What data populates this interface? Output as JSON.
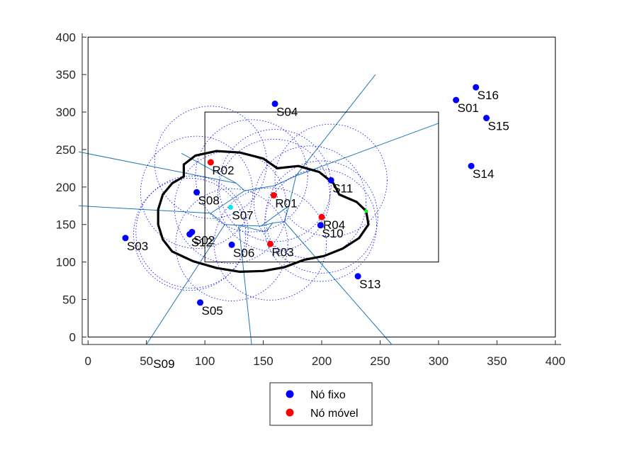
{
  "chart_data": {
    "type": "scatter",
    "title": "",
    "xlabel": "",
    "ylabel": "",
    "xlim": [
      -5,
      405
    ],
    "ylim": [
      -10,
      405
    ],
    "xticks": [
      "0",
      "50",
      "100",
      "150",
      "200",
      "250",
      "300",
      "350",
      "400"
    ],
    "yticks": [
      "0",
      "50",
      "100",
      "150",
      "200",
      "250",
      "300",
      "350",
      "400"
    ],
    "colors": {
      "fixed": "#0000ff",
      "mobile": "#ff0000",
      "voronoi": "#1f77b4",
      "coverage": "#0000ff",
      "cyan": "#00e5e5",
      "green": "#00ff00"
    },
    "series": [
      {
        "name": "Nó fixo",
        "points": [
          {
            "label": "S01",
            "x": 315,
            "y": 316
          },
          {
            "label": "S02",
            "x": 89,
            "y": 140
          },
          {
            "label": "S03",
            "x": 32,
            "y": 132
          },
          {
            "label": "S04",
            "x": 160,
            "y": 311
          },
          {
            "label": "S05",
            "x": 96,
            "y": 46
          },
          {
            "label": "S06",
            "x": 123,
            "y": 123
          },
          {
            "label": "S08",
            "x": 93,
            "y": 193
          },
          {
            "label": "S10",
            "x": 199,
            "y": 149
          },
          {
            "label": "S11",
            "x": 208,
            "y": 209
          },
          {
            "label": "S12",
            "x": 87,
            "y": 137
          },
          {
            "label": "S13",
            "x": 231,
            "y": 81
          },
          {
            "label": "S14",
            "x": 328,
            "y": 228
          },
          {
            "label": "S15",
            "x": 341,
            "y": 292
          },
          {
            "label": "S16",
            "x": 332,
            "y": 333
          }
        ]
      },
      {
        "name": "Nó móvel",
        "points": [
          {
            "label": "R01",
            "x": 159,
            "y": 189
          },
          {
            "label": "R02",
            "x": 105,
            "y": 233
          },
          {
            "label": "R03",
            "x": 156,
            "y": 124
          },
          {
            "label": "R04",
            "x": 200,
            "y": 160
          }
        ]
      }
    ],
    "extra_points": [
      {
        "label": "S07",
        "x": 122,
        "y": 173,
        "color": "cyan"
      },
      {
        "label": "",
        "x": 238,
        "y": 168,
        "color": "green"
      }
    ],
    "outside_labels": [
      {
        "label": "S09",
        "x": 65,
        "y": -41
      }
    ],
    "rectangles": [
      {
        "x0": 100,
        "y0": 100,
        "x1": 300,
        "y1": 300
      },
      {
        "x0": 0,
        "y0": 0,
        "x1": 400,
        "y1": 400
      }
    ],
    "voronoi_vertices": {
      "a": [
        127,
        205
      ],
      "b": [
        134,
        195
      ],
      "c": [
        160,
        202
      ],
      "d": [
        178,
        215
      ],
      "e": [
        172,
        175
      ],
      "f": [
        148,
        148
      ],
      "g": [
        129,
        149
      ],
      "h": [
        117,
        150
      ],
      "i": [
        105,
        165
      ],
      "j": [
        158,
        152
      ],
      "k": [
        168,
        154
      ],
      "l": [
        152,
        140
      ]
    },
    "voronoi_edges": [
      [
        "a",
        "b"
      ],
      [
        "b",
        "c"
      ],
      [
        "c",
        "d"
      ],
      [
        "b",
        "i"
      ],
      [
        "i",
        "h"
      ],
      [
        "h",
        "g"
      ],
      [
        "g",
        "f"
      ],
      [
        "f",
        "e"
      ],
      [
        "e",
        "d"
      ],
      [
        "e",
        "k"
      ],
      [
        "k",
        "j"
      ],
      [
        "j",
        "f"
      ],
      [
        "j",
        "l"
      ],
      [
        "g",
        "l"
      ]
    ],
    "voronoi_rays": [
      {
        "from": "a",
        "to": [
          -8,
          247
        ]
      },
      {
        "from": "a",
        "to": [
          80,
          245
        ]
      },
      {
        "from": "i",
        "to": [
          -8,
          175
        ]
      },
      {
        "from": "h",
        "to": [
          50,
          -10
        ]
      },
      {
        "from": "g",
        "to": [
          140,
          -10
        ]
      },
      {
        "from": "k",
        "to": [
          260,
          -10
        ]
      },
      {
        "from": "d",
        "to": [
          246,
          350
        ]
      },
      {
        "from": "d",
        "to": [
          300,
          285
        ]
      }
    ],
    "legend": {
      "position": "bottom",
      "entries": [
        "Nó fixo",
        "Nó móvel"
      ]
    }
  }
}
